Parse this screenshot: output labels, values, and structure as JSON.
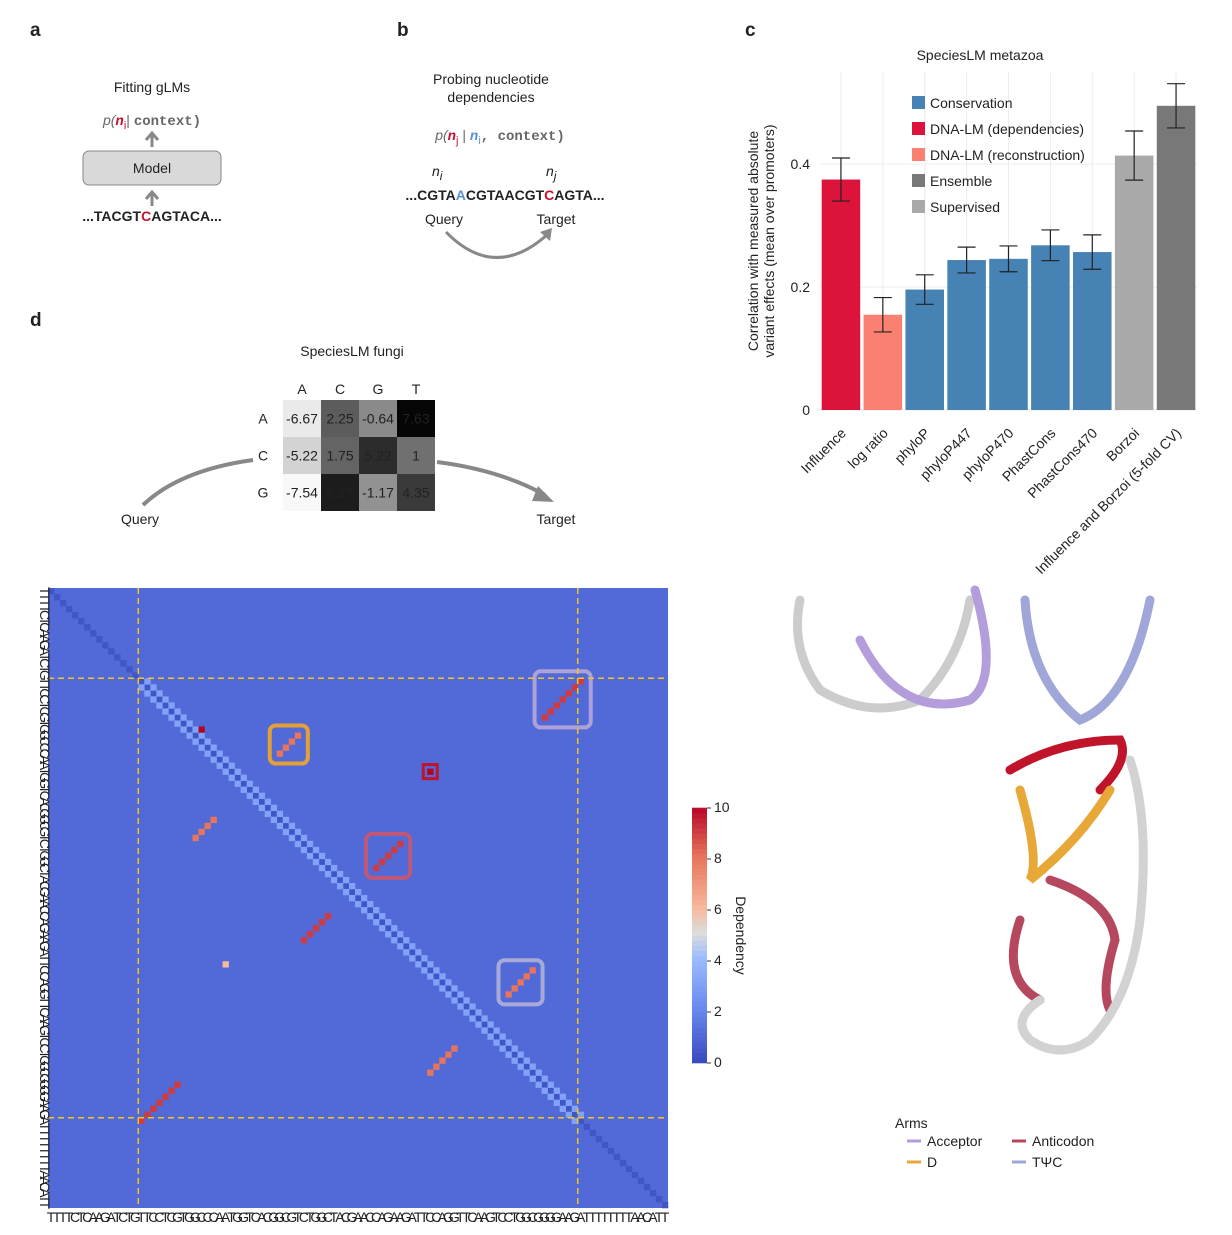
{
  "panel_a": {
    "letter": "a",
    "title": "Fitting gLMs",
    "formula": [
      "p(",
      "n",
      "i",
      "| ",
      "context)"
    ],
    "model": "Model",
    "sequence": [
      "...TACGT",
      "C",
      "AGTACA..."
    ]
  },
  "panel_b": {
    "letter": "b",
    "title": [
      "Probing nucleotide",
      "dependencies"
    ],
    "formula": [
      "p(",
      "n",
      "j",
      " | ",
      "n",
      "i",
      ", context)"
    ],
    "query_symbol": [
      "n",
      "i"
    ],
    "target_symbol": [
      "n",
      "j"
    ],
    "sequence": [
      "...CGTA",
      "A",
      "CGTAACGT",
      "C",
      "AGTA..."
    ],
    "query": "Query",
    "target": "Target"
  },
  "chart_data": {
    "type": "bar",
    "letter": "c",
    "title": "SpeciesLM metazoa",
    "y_label": [
      "Correlation with measured absolute",
      "variant effects (mean over promoters)"
    ],
    "categories": [
      "Influence",
      "log ratio",
      "phyloP",
      "phyloP447",
      "phyloP470",
      "PhastCons",
      "PhastCons470",
      "Borzoi",
      "Influence and Borzoi (5-fold CV)"
    ],
    "series": [
      {
        "name": "Conservation",
        "color": "#4682b4",
        "values": [
          null,
          null,
          0.196,
          0.244,
          0.246,
          0.268,
          0.257,
          null,
          null
        ],
        "errors": [
          null,
          null,
          0.024,
          0.021,
          0.021,
          0.025,
          0.028,
          null,
          null
        ]
      },
      {
        "name": "DNA-LM (dependencies)",
        "color": "#dc143c",
        "values": [
          0.375,
          null,
          null,
          null,
          null,
          null,
          null,
          null,
          null
        ],
        "errors": [
          0.035,
          null,
          null,
          null,
          null,
          null,
          null,
          null,
          null
        ]
      },
      {
        "name": "DNA-LM (reconstruction)",
        "color": "#fa8072",
        "values": [
          null,
          0.155,
          null,
          null,
          null,
          null,
          null,
          null,
          null
        ],
        "errors": [
          null,
          0.028,
          null,
          null,
          null,
          null,
          null,
          null,
          null
        ]
      },
      {
        "name": "Ensemble",
        "color": "#787878",
        "values": [
          null,
          null,
          null,
          null,
          null,
          null,
          null,
          null,
          0.495
        ],
        "errors": [
          null,
          null,
          null,
          null,
          null,
          null,
          null,
          null,
          0.036
        ]
      },
      {
        "name": "Supervised",
        "color": "#a9a9a9",
        "values": [
          null,
          null,
          null,
          null,
          null,
          null,
          null,
          0.414,
          null
        ],
        "errors": [
          null,
          null,
          null,
          null,
          null,
          null,
          null,
          0.04,
          null
        ]
      }
    ],
    "ylim": [
      0,
      0.55
    ],
    "yticks": [
      0,
      0.2,
      0.4
    ],
    "grid": true
  },
  "panel_d": {
    "letter": "d",
    "title": "SpeciesLM fungi",
    "columns": [
      "A",
      "C",
      "G",
      "T"
    ],
    "rows": [
      "A",
      "C",
      "G"
    ],
    "matrix": [
      [
        -6.67,
        2.25,
        -0.64,
        7.63
      ],
      [
        -5.22,
        1.75,
        5.22,
        1.0
      ],
      [
        -7.54,
        6.27,
        -1.17,
        4.35
      ]
    ],
    "color_limits": [
      -8,
      8
    ],
    "query": "Query",
    "target": "Target",
    "heatmap": {
      "sequence": "TTTTCTCAAGATCTGTTCCTCGTGGCCCAATGGTCACGGCGTCTGGCTACGAACCAGAAGATTCCAGGTTCAAGTCCTGGCGGGGAAGATTTTTTTTAACATT",
      "trna_span": [
        15,
        88
      ],
      "background_value": 1,
      "diagonal_value": 0.3,
      "near_diagonal_value": 3,
      "pairs": [
        {
          "i": 15,
          "j": 88,
          "length": 7,
          "value": 9,
          "box_color": "#b8a6d9"
        },
        {
          "i": 24,
          "j": 41,
          "length": 4,
          "value": 8,
          "box_color": "#f5a623"
        },
        {
          "i": 42,
          "j": 58,
          "length": 5,
          "value": 9,
          "box_color": "#c9566b"
        },
        {
          "i": 63,
          "j": 80,
          "length": 5,
          "value": 8,
          "box_color": "#b0b0d8"
        }
      ],
      "singles": [
        {
          "i": 30,
          "j": 63,
          "value": 10,
          "box_color": "#c0142b"
        },
        {
          "i": 23,
          "j": 25,
          "value": 10
        },
        {
          "i": 62,
          "j": 29,
          "value": 6
        }
      ],
      "colorbar": {
        "lim": [
          0,
          10
        ],
        "ticks": [
          0,
          2,
          4,
          6,
          8,
          10
        ],
        "label": "Dependency"
      }
    }
  },
  "panel_e": {
    "legend_title": "Arms",
    "arms": [
      {
        "name": "Acceptor",
        "color": "#b39ddb"
      },
      {
        "name": "Anticodon",
        "color": "#b5475f"
      },
      {
        "name": "D",
        "color": "#e8a838"
      },
      {
        "name": "TΨC",
        "color": "#9fa6d8"
      }
    ]
  }
}
